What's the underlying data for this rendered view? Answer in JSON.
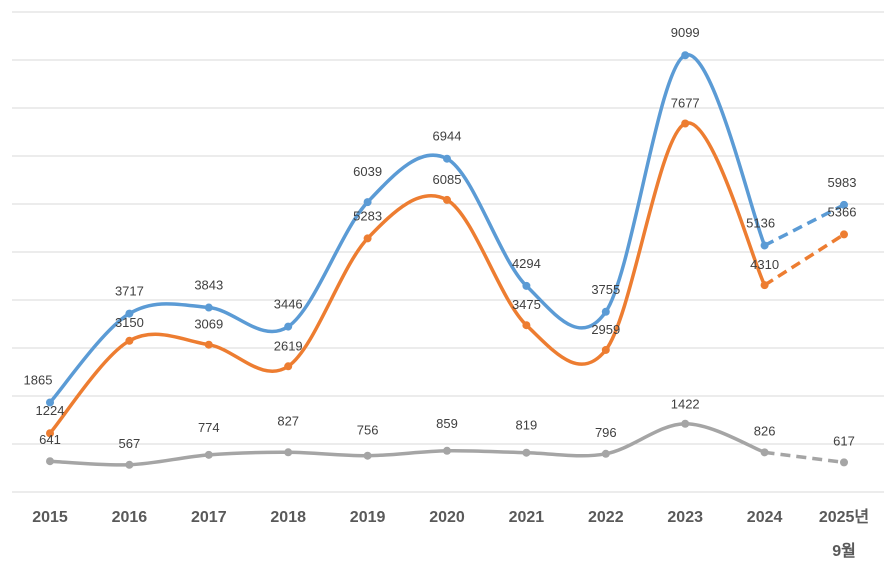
{
  "chart_data": {
    "type": "line",
    "title": "",
    "xlabel": "",
    "ylabel": "",
    "categories": [
      "2015",
      "2016",
      "2017",
      "2018",
      "2019",
      "2020",
      "2021",
      "2022",
      "2023",
      "2024",
      "2025년|9월"
    ],
    "ylim": [
      0,
      10000
    ],
    "grid": true,
    "projected_from_index": 9,
    "series": [
      {
        "name": "series-1",
        "color": "#5b9bd5",
        "values": [
          1865,
          3717,
          3843,
          3446,
          6039,
          6944,
          4294,
          3755,
          9099,
          5136,
          5983
        ]
      },
      {
        "name": "series-2",
        "color": "#ed7d31",
        "values": [
          1224,
          3150,
          3069,
          2619,
          5283,
          6085,
          3475,
          2959,
          7677,
          4310,
          5366
        ]
      },
      {
        "name": "series-3",
        "color": "#a5a5a5",
        "values": [
          641,
          567,
          774,
          827,
          756,
          859,
          819,
          796,
          1422,
          826,
          617
        ]
      }
    ]
  }
}
